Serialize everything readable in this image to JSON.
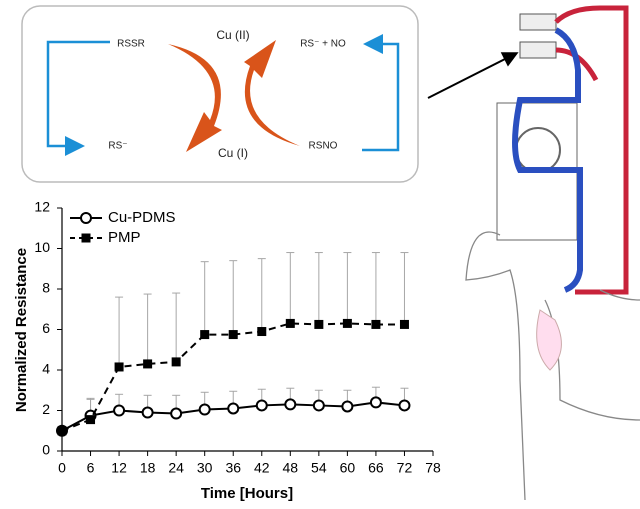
{
  "diagram": {
    "labels": [
      "RSSR",
      "RS⁻",
      "Cu (II)",
      "Cu (I)",
      "RS⁻ + NO",
      "RSNO"
    ]
  },
  "chart_data": {
    "type": "line",
    "xlabel": "Time [Hours]",
    "ylabel": "Normalized Resistance",
    "x": [
      0,
      6,
      12,
      18,
      24,
      30,
      36,
      42,
      48,
      54,
      60,
      66,
      72
    ],
    "series": [
      {
        "name": "Cu-PDMS",
        "color": "#000000",
        "marker": "circle",
        "dashed": false,
        "values": [
          1.0,
          1.75,
          2.0,
          1.9,
          1.85,
          2.05,
          2.1,
          2.25,
          2.3,
          2.25,
          2.2,
          2.4,
          2.25
        ],
        "errors": [
          0,
          0.85,
          0.8,
          0.85,
          0.9,
          0.85,
          0.85,
          0.8,
          0.8,
          0.75,
          0.8,
          0.75,
          0.85
        ]
      },
      {
        "name": "PMP",
        "color": "#000000",
        "marker": "square",
        "dashed": true,
        "values": [
          1.0,
          1.55,
          4.15,
          4.3,
          4.4,
          5.75,
          5.75,
          5.9,
          6.3,
          6.25,
          6.3,
          6.25,
          6.25
        ],
        "errors": [
          0,
          1.0,
          3.45,
          3.45,
          3.4,
          3.6,
          3.65,
          3.6,
          3.5,
          3.55,
          3.5,
          3.55,
          3.55
        ]
      }
    ],
    "error_color": "#a6a6a6",
    "xlim": [
      0,
      78
    ],
    "xticks": [
      0,
      6,
      12,
      18,
      24,
      30,
      36,
      42,
      48,
      54,
      60,
      66,
      72,
      78
    ],
    "ylim": [
      0,
      12
    ],
    "yticks": [
      0,
      2,
      4,
      6,
      8,
      10,
      12
    ],
    "legend": "upper left"
  }
}
